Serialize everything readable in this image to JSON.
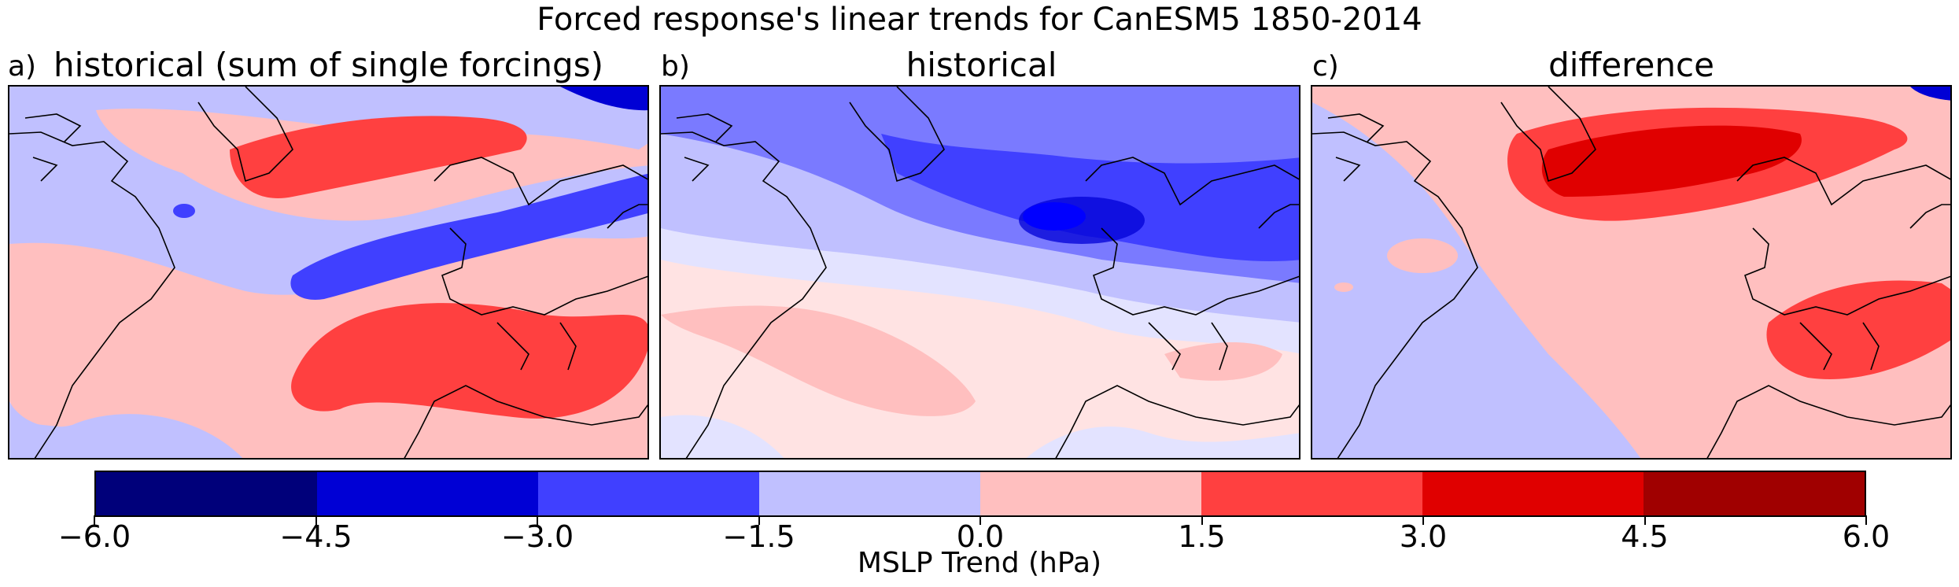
{
  "figure": {
    "title": "Forced response's linear trends for CanESM5 1850-2014"
  },
  "panels": [
    {
      "letter": "a)",
      "title": "historical (sum of single forcings)"
    },
    {
      "letter": "b)",
      "title": "historical"
    },
    {
      "letter": "c)",
      "title": "difference"
    }
  ],
  "colorbar": {
    "label": "MSLP Trend (hPa)",
    "ticks": [
      "−6.0",
      "−4.5",
      "−3.0",
      "−1.5",
      "0.0",
      "1.5",
      "3.0",
      "4.5",
      "6.0"
    ],
    "colors": [
      "#00007a",
      "#0000d5",
      "#4040ff",
      "#c0c0ff",
      "#ffbfbf",
      "#ff4040",
      "#e00000",
      "#a00000"
    ],
    "b_light_colors": [
      "#e3e3ff",
      "#ffe3e3"
    ]
  }
}
